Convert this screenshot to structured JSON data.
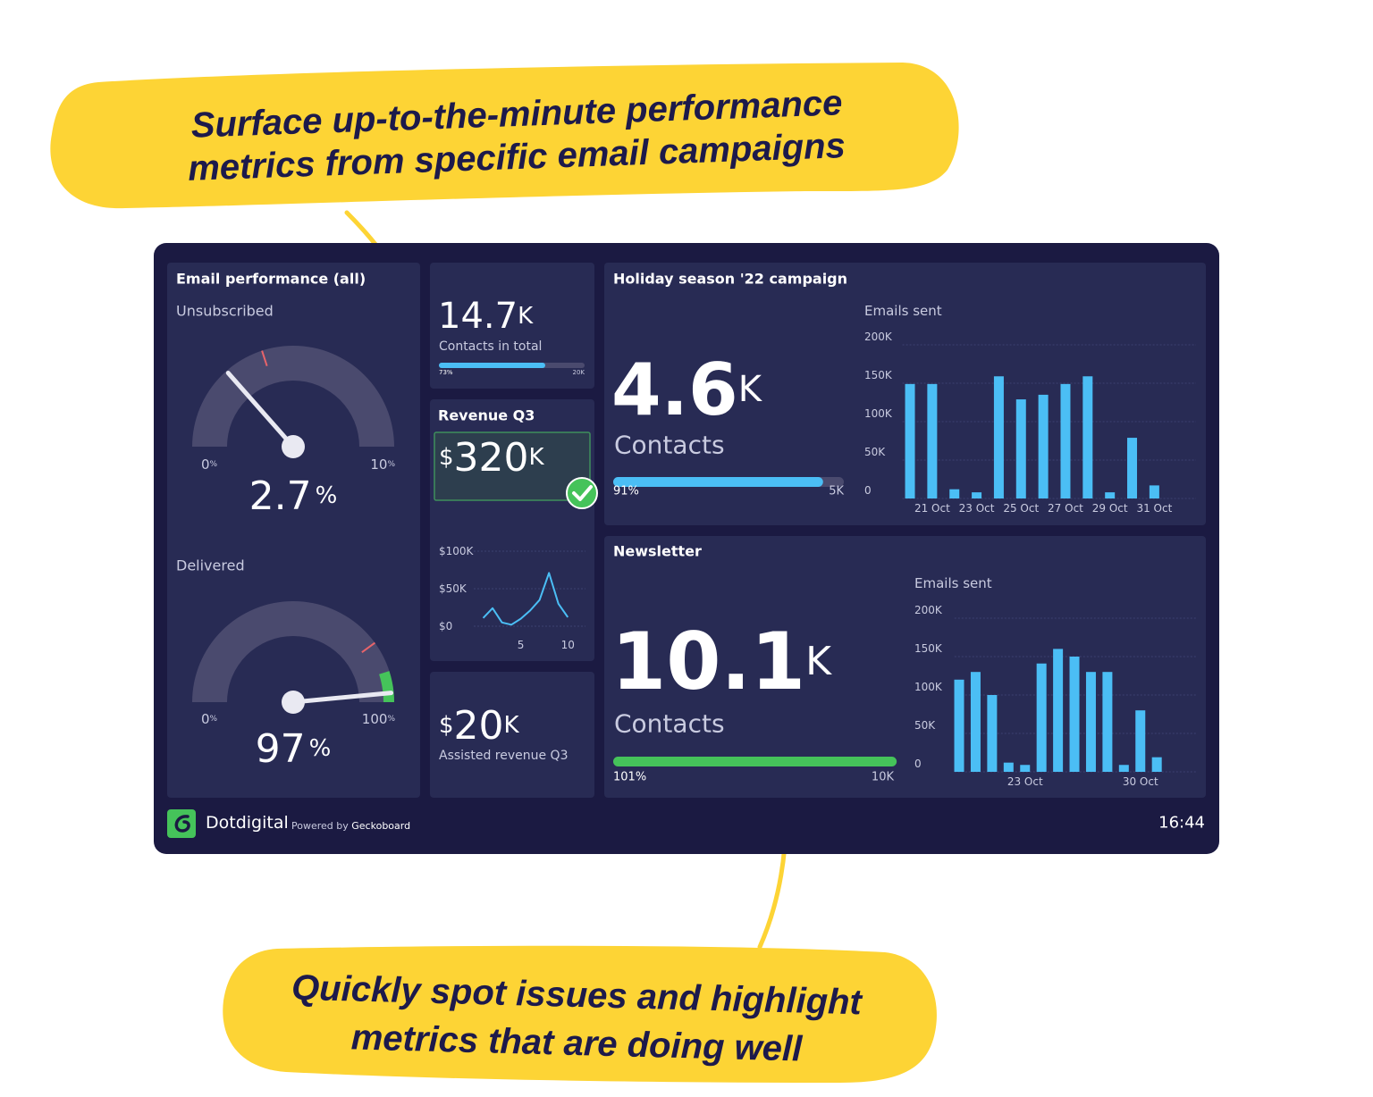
{
  "callouts": [
    {
      "lines": [
        "Surface up-to-the-minute performance",
        "metrics from specific email campaigns"
      ]
    },
    {
      "lines": [
        "Quickly spot issues and highlight",
        "metrics that are doing well"
      ]
    }
  ],
  "email_performance": {
    "title": "Email performance (all)",
    "gauges": [
      {
        "label": "Unsubscribed",
        "value": 2.7,
        "unit": "%",
        "min": 0,
        "max": 10,
        "threshold": 4
      },
      {
        "label": "Delivered",
        "value": 97,
        "unit": "%",
        "min": 0,
        "max": 100,
        "threshold": 80,
        "target": 90
      }
    ]
  },
  "contacts_total": {
    "value": 14.7,
    "suffix": "K",
    "label": "Contacts in total",
    "progress": 73,
    "progress_label": "73%",
    "goal_label": "20K"
  },
  "revenue": {
    "title": "Revenue Q3",
    "prefix": "$",
    "value": 320,
    "suffix": "K"
  },
  "assisted_revenue": {
    "prefix": "$",
    "value": 20,
    "suffix": "K",
    "label": "Assisted revenue Q3"
  },
  "holiday": {
    "title": "Holiday season '22 campaign",
    "value": 4.6,
    "suffix": "K",
    "label": "Contacts",
    "progress": 91,
    "progress_label": "91%",
    "goal_label": "5K"
  },
  "newsletter": {
    "title": "Newsletter",
    "value": 10.1,
    "suffix": "K",
    "label": "Contacts",
    "progress": 101,
    "progress_label": "101%",
    "goal_label": "10K"
  },
  "footer": {
    "brand": "Dotdigital",
    "powered_by": "Powered by ",
    "provider": "Geckoboard",
    "time": "16:44"
  },
  "chart_data": [
    {
      "type": "line",
      "color": "#4bbef5",
      "x": [
        1,
        2,
        3,
        4,
        5,
        6,
        7,
        8,
        9,
        10
      ],
      "values": [
        11000,
        24000,
        5000,
        2000,
        10000,
        21000,
        35000,
        71000,
        30000,
        12000
      ],
      "xlim": [
        0,
        11.5
      ],
      "xticks": [
        5,
        10
      ],
      "ylim": [
        0,
        100000
      ],
      "yticks": [
        {
          "value": 0,
          "label": "$0"
        },
        {
          "value": 50000,
          "label": "$50K"
        },
        {
          "value": 100000,
          "label": "$100K"
        }
      ],
      "grid": true
    },
    {
      "type": "bar",
      "title": "Emails sent",
      "color": "#4bbef5",
      "categories": [
        null,
        "21 Oct",
        null,
        "23 Oct",
        null,
        "25 Oct",
        null,
        "27 Oct",
        null,
        "29 Oct",
        null,
        "31 Oct"
      ],
      "values": [
        149000,
        149000,
        12000,
        8000,
        159000,
        129000,
        135000,
        149000,
        159000,
        8000,
        79000,
        17000
      ],
      "ylim": [
        0,
        200000
      ],
      "yticks": [
        0,
        {
          "value": 50000,
          "label": "50K"
        },
        {
          "value": 100000,
          "label": "100K"
        },
        {
          "value": 150000,
          "label": "150K"
        },
        {
          "value": 200000,
          "label": "200K"
        }
      ],
      "grid": true
    },
    {
      "type": "bar",
      "title": "Emails sent",
      "color": "#4bbef5",
      "categories": [
        null,
        null,
        null,
        null,
        "23 Oct",
        null,
        null,
        null,
        null,
        null,
        null,
        "30 Oct",
        null
      ],
      "values": [
        120000,
        130000,
        100000,
        12000,
        9000,
        141000,
        160000,
        150000,
        130000,
        130000,
        9000,
        80000,
        19000
      ],
      "ylim": [
        0,
        200000
      ],
      "yticks": [
        0,
        {
          "value": 50000,
          "label": "50K"
        },
        {
          "value": 100000,
          "label": "100K"
        },
        {
          "value": 150000,
          "label": "150K"
        },
        {
          "value": 200000,
          "label": "200K"
        }
      ],
      "grid": true
    }
  ]
}
